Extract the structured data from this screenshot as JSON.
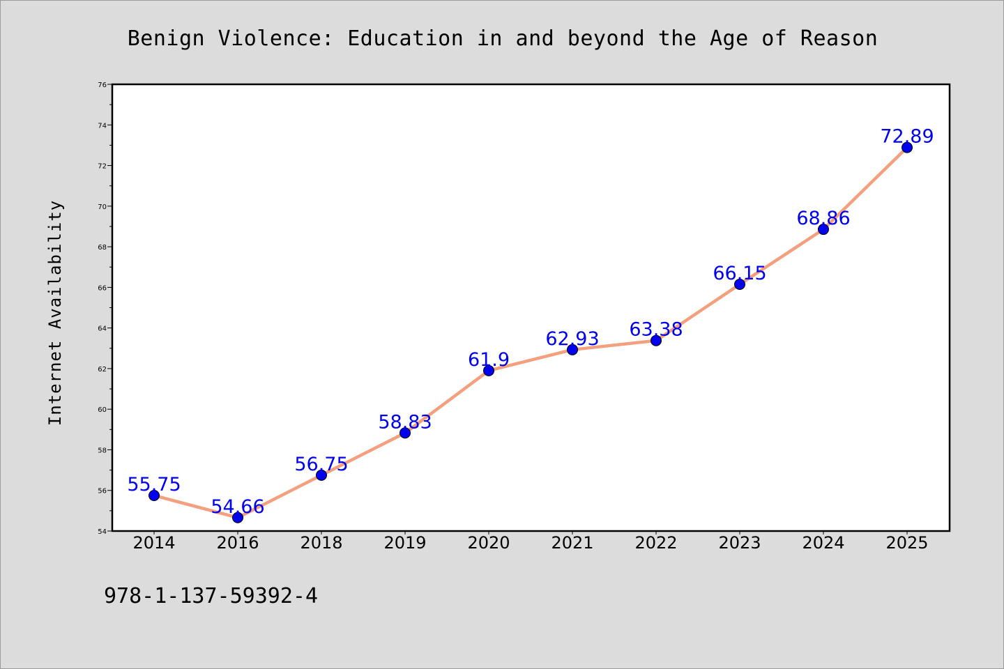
{
  "chart_data": {
    "type": "line",
    "title": "Benign Violence: Education in and beyond the Age of Reason",
    "xlabel": "",
    "ylabel": "Internet Availability",
    "categories": [
      "2014",
      "2016",
      "2018",
      "2019",
      "2020",
      "2021",
      "2022",
      "2023",
      "2024",
      "2025"
    ],
    "series": [
      {
        "values": [
          55.75,
          54.66,
          56.75,
          58.83,
          61.9,
          62.93,
          63.38,
          66.15,
          68.86,
          72.89
        ],
        "line_color": "#f4a07f",
        "marker_color": "#0000ee"
      }
    ],
    "data_labels": [
      "55.75",
      "54.66",
      "56.75",
      "58.83",
      "61.9",
      "62.93",
      "63.38",
      "66.15",
      "68.86",
      "72.89"
    ],
    "ylim": [
      54,
      76
    ],
    "yticks": [
      "54",
      "56",
      "58",
      "60",
      "62",
      "64",
      "66",
      "68",
      "70",
      "72",
      "74",
      "76"
    ],
    "grid": false,
    "legend": "none"
  },
  "footer": {
    "isbn": "978-1-137-59392-4"
  },
  "colors": {
    "background": "#dcdcdc",
    "plot_background": "#ffffff",
    "line": "#f4a07f",
    "marker": "#0000ee",
    "label": "#0000ee"
  }
}
